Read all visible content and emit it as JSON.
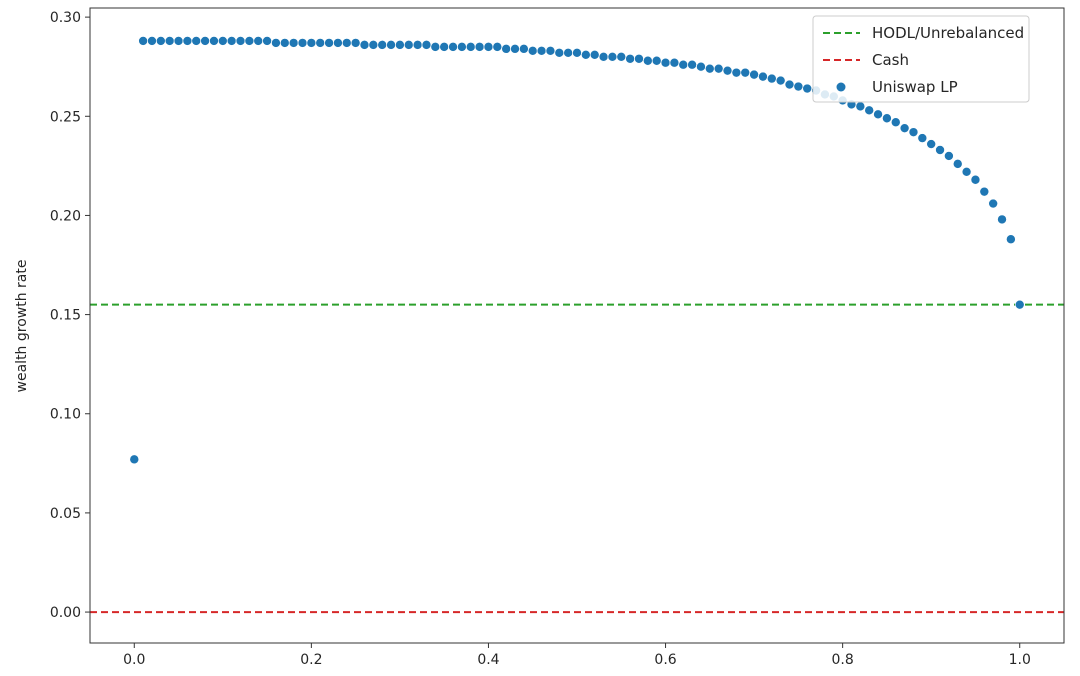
{
  "chart_data": {
    "type": "scatter",
    "title": "",
    "xlabel": "",
    "ylabel": "wealth growth rate",
    "xlim": [
      -0.05,
      1.05
    ],
    "ylim": [
      -0.0156,
      0.3046
    ],
    "xticks": [
      "0.0",
      "0.2",
      "0.4",
      "0.6",
      "0.8",
      "1.0"
    ],
    "yticks": [
      "0.00",
      "0.05",
      "0.10",
      "0.15",
      "0.20",
      "0.25",
      "0.30"
    ],
    "grid": false,
    "legend_position": "top-right",
    "hlines": [
      {
        "name": "HODL/Unrebalanced",
        "y": 0.155,
        "color": "#2ca02c",
        "style": "dashed"
      },
      {
        "name": "Cash",
        "y": 0.0,
        "color": "#d62728",
        "style": "dashed"
      }
    ],
    "series": [
      {
        "name": "Uniswap LP",
        "color": "#1f77b4",
        "x": [
          0.0,
          0.01,
          0.02,
          0.03,
          0.04,
          0.05,
          0.06,
          0.07,
          0.08,
          0.09,
          0.1,
          0.11,
          0.12,
          0.13,
          0.14,
          0.15,
          0.16,
          0.17,
          0.18,
          0.19,
          0.2,
          0.21,
          0.22,
          0.23,
          0.24,
          0.25,
          0.26,
          0.27,
          0.28,
          0.29,
          0.3,
          0.31,
          0.32,
          0.33,
          0.34,
          0.35,
          0.36,
          0.37,
          0.38,
          0.39,
          0.4,
          0.41,
          0.42,
          0.43,
          0.44,
          0.45,
          0.46,
          0.47,
          0.48,
          0.49,
          0.5,
          0.51,
          0.52,
          0.53,
          0.54,
          0.55,
          0.56,
          0.57,
          0.58,
          0.59,
          0.6,
          0.61,
          0.62,
          0.63,
          0.64,
          0.65,
          0.66,
          0.67,
          0.68,
          0.69,
          0.7,
          0.71,
          0.72,
          0.73,
          0.74,
          0.75,
          0.76,
          0.77,
          0.78,
          0.79,
          0.8,
          0.81,
          0.82,
          0.83,
          0.84,
          0.85,
          0.86,
          0.87,
          0.88,
          0.89,
          0.9,
          0.91,
          0.92,
          0.93,
          0.94,
          0.95,
          0.96,
          0.97,
          0.98,
          0.99,
          1.0
        ],
        "y": [
          0.077,
          0.288,
          0.288,
          0.288,
          0.288,
          0.288,
          0.288,
          0.288,
          0.288,
          0.288,
          0.288,
          0.288,
          0.288,
          0.288,
          0.288,
          0.288,
          0.287,
          0.287,
          0.287,
          0.287,
          0.287,
          0.287,
          0.287,
          0.287,
          0.287,
          0.287,
          0.286,
          0.286,
          0.286,
          0.286,
          0.286,
          0.286,
          0.286,
          0.286,
          0.285,
          0.285,
          0.285,
          0.285,
          0.285,
          0.285,
          0.285,
          0.285,
          0.284,
          0.284,
          0.284,
          0.283,
          0.283,
          0.283,
          0.282,
          0.282,
          0.282,
          0.281,
          0.281,
          0.28,
          0.28,
          0.28,
          0.279,
          0.279,
          0.278,
          0.278,
          0.277,
          0.277,
          0.276,
          0.276,
          0.275,
          0.274,
          0.274,
          0.273,
          0.272,
          0.272,
          0.271,
          0.27,
          0.269,
          0.268,
          0.266,
          0.265,
          0.264,
          0.263,
          0.261,
          0.26,
          0.258,
          0.256,
          0.255,
          0.253,
          0.251,
          0.249,
          0.247,
          0.244,
          0.242,
          0.239,
          0.236,
          0.233,
          0.23,
          0.226,
          0.222,
          0.218,
          0.212,
          0.206,
          0.198,
          0.188,
          0.155
        ]
      }
    ]
  }
}
